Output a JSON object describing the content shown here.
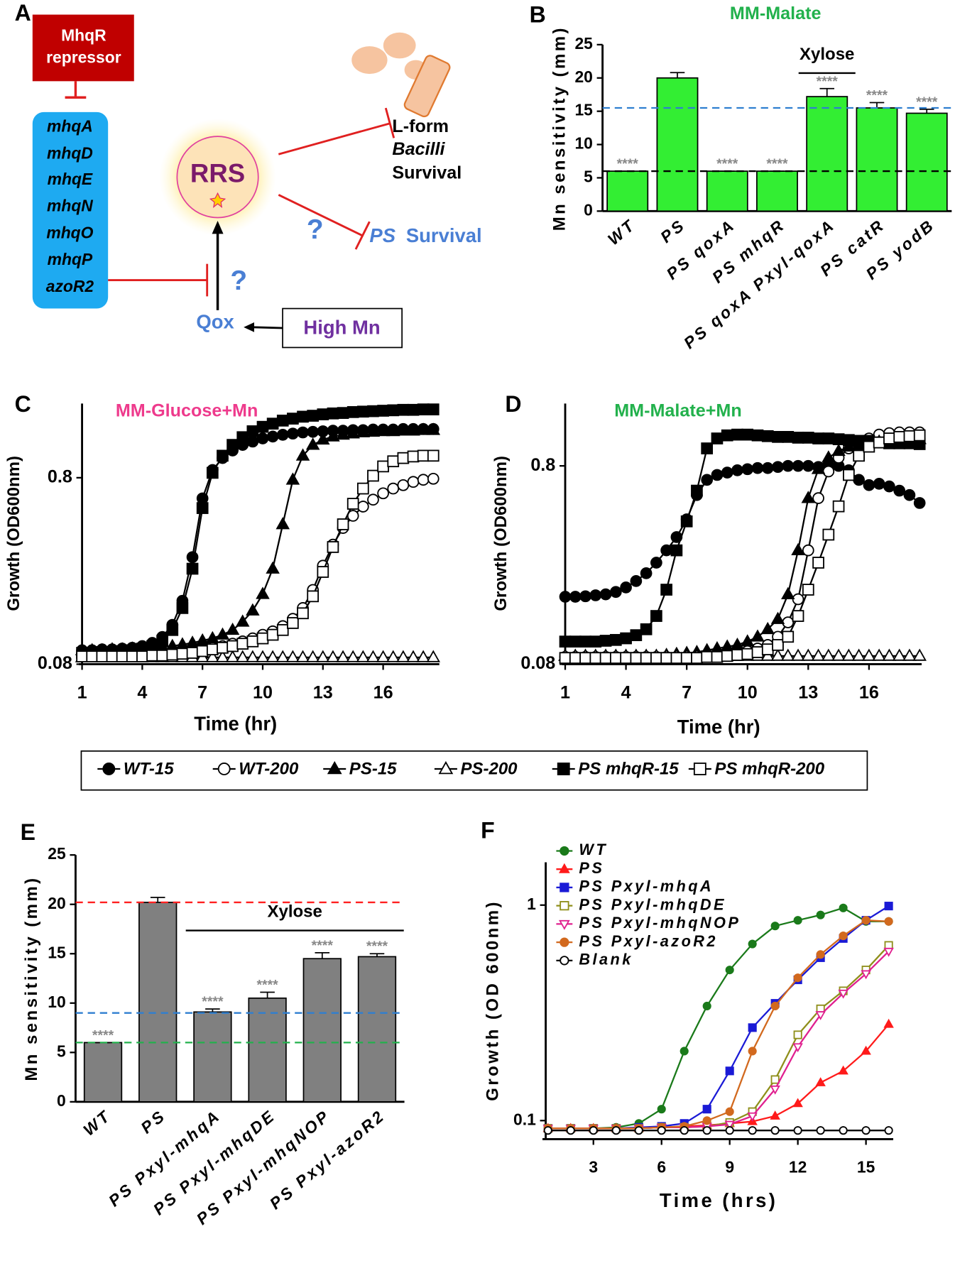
{
  "diagram": {
    "panel": "A",
    "repressor": [
      "MhqR",
      "repressor"
    ],
    "genes": [
      "mhqA",
      "mhqD",
      "mhqE",
      "mhqN",
      "mhqO",
      "mhqP",
      "azoR2"
    ],
    "center": "RRS",
    "lform": [
      "L-form",
      "Bacilli",
      "Survival"
    ],
    "question_marks": [
      "?",
      "?"
    ],
    "ps_survival": [
      "PS",
      "Survival"
    ],
    "qox": "Qox",
    "high_mn": "High Mn"
  },
  "shared_legend": [
    "WT-15",
    "WT-200",
    "PS-15",
    "PS-200",
    "PS mhqR-15",
    "PS mhqR-200"
  ],
  "chart_data": [
    {
      "panel": "B",
      "type": "bar",
      "title": "MM-Malate",
      "title_color": "#22b14c",
      "y_label": "Mn sensitivity (mm)",
      "categories": [
        "WT",
        "PS",
        "PS qoxA",
        "PS mhqR",
        "PS qoxA Pxyl-qoxA",
        "PS catR",
        "PS yodB"
      ],
      "values": [
        6,
        20,
        6,
        6,
        17.2,
        15.5,
        14.7
      ],
      "errors": [
        0,
        0.8,
        0,
        0,
        1.2,
        0.8,
        0.6
      ],
      "significance": [
        "****",
        null,
        "****",
        "****",
        "****",
        "****",
        "****"
      ],
      "color": "#33ee33",
      "ylim": [
        0,
        25
      ],
      "yticks": [
        0,
        5,
        10,
        15,
        20,
        25
      ],
      "reference_lines": [
        {
          "value": 15.5,
          "color": "#2f7fd0"
        },
        {
          "value": 6,
          "color": "#000000"
        }
      ],
      "bracket": {
        "label": "Xylose",
        "span": [
          4,
          4
        ]
      }
    },
    {
      "panel": "C",
      "type": "line",
      "title": "MM-Glucose+Mn",
      "title_color": "#ee3a8c",
      "y_label": "Growth (OD600nm)",
      "x_label": "Time (hr)",
      "log_y": true,
      "xlim": [
        1,
        18.8
      ],
      "xticks": [
        1,
        4,
        7,
        10,
        13,
        16
      ],
      "ylim": [
        0.08,
        2.0
      ],
      "yticks": [
        0.08,
        0.8
      ],
      "x": [
        1,
        1.5,
        2,
        2.5,
        3,
        3.5,
        4,
        4.5,
        5,
        5.5,
        6,
        6.5,
        7,
        7.5,
        8,
        8.5,
        9,
        9.5,
        10,
        10.5,
        11,
        11.5,
        12,
        12.5,
        13,
        13.5,
        14,
        14.5,
        15,
        15.5,
        16,
        16.5,
        17,
        17.5,
        18,
        18.5
      ],
      "series": [
        {
          "marker": "circle",
          "filled": true,
          "color": "#000000",
          "values": [
            0.095,
            0.095,
            0.096,
            0.096,
            0.097,
            0.098,
            0.1,
            0.104,
            0.112,
            0.13,
            0.175,
            0.3,
            0.62,
            0.88,
            1.02,
            1.12,
            1.2,
            1.25,
            1.3,
            1.33,
            1.36,
            1.38,
            1.4,
            1.41,
            1.42,
            1.43,
            1.43,
            1.44,
            1.44,
            1.45,
            1.45,
            1.45,
            1.46,
            1.46,
            1.46,
            1.46
          ]
        },
        {
          "marker": "circle",
          "filled": false,
          "color": "#000000",
          "values": [
            0.09,
            0.09,
            0.09,
            0.09,
            0.09,
            0.09,
            0.09,
            0.091,
            0.091,
            0.092,
            0.093,
            0.094,
            0.096,
            0.098,
            0.1,
            0.103,
            0.106,
            0.11,
            0.115,
            0.12,
            0.128,
            0.14,
            0.16,
            0.2,
            0.27,
            0.35,
            0.43,
            0.5,
            0.56,
            0.61,
            0.66,
            0.7,
            0.73,
            0.76,
            0.78,
            0.79
          ]
        },
        {
          "marker": "triangle",
          "filled": true,
          "color": "#000000",
          "values": [
            0.095,
            0.095,
            0.095,
            0.096,
            0.096,
            0.097,
            0.097,
            0.098,
            0.099,
            0.1,
            0.102,
            0.104,
            0.107,
            0.11,
            0.115,
            0.122,
            0.135,
            0.155,
            0.19,
            0.26,
            0.45,
            0.78,
            1.05,
            1.2,
            1.28,
            1.33,
            1.36,
            1.38,
            1.4,
            1.41,
            1.42,
            1.42,
            1.43,
            1.43,
            1.44,
            1.44
          ]
        },
        {
          "marker": "triangle",
          "filled": false,
          "color": "#000000",
          "values": [
            0.087,
            0.087,
            0.087,
            0.087,
            0.087,
            0.087,
            0.087,
            0.087,
            0.087,
            0.087,
            0.087,
            0.087,
            0.087,
            0.087,
            0.087,
            0.087,
            0.087,
            0.087,
            0.087,
            0.087,
            0.087,
            0.087,
            0.087,
            0.087,
            0.087,
            0.087,
            0.087,
            0.087,
            0.087,
            0.087,
            0.087,
            0.087,
            0.087,
            0.087,
            0.087,
            0.087
          ]
        },
        {
          "marker": "square",
          "filled": true,
          "color": "#000000",
          "values": [
            0.092,
            0.092,
            0.093,
            0.093,
            0.094,
            0.095,
            0.097,
            0.1,
            0.107,
            0.122,
            0.16,
            0.26,
            0.55,
            0.85,
            1.05,
            1.2,
            1.32,
            1.42,
            1.5,
            1.56,
            1.62,
            1.66,
            1.7,
            1.72,
            1.75,
            1.77,
            1.78,
            1.8,
            1.81,
            1.82,
            1.83,
            1.84,
            1.85,
            1.85,
            1.86,
            1.86
          ]
        },
        {
          "marker": "square",
          "filled": false,
          "color": "#000000",
          "values": [
            0.088,
            0.088,
            0.088,
            0.088,
            0.088,
            0.088,
            0.088,
            0.089,
            0.089,
            0.09,
            0.091,
            0.092,
            0.094,
            0.096,
            0.098,
            0.1,
            0.103,
            0.106,
            0.11,
            0.115,
            0.122,
            0.133,
            0.15,
            0.185,
            0.25,
            0.34,
            0.45,
            0.58,
            0.7,
            0.82,
            0.92,
            0.98,
            1.02,
            1.04,
            1.05,
            1.05
          ]
        }
      ]
    },
    {
      "panel": "D",
      "type": "line",
      "title": "MM-Malate+Mn",
      "title_color": "#22b14c",
      "y_label": "Growth (OD600nm)",
      "x_label": "Time (hr)",
      "log_y": true,
      "xlim": [
        1,
        18.6
      ],
      "xticks": [
        1,
        4,
        7,
        10,
        13,
        16
      ],
      "ylim": [
        0.08,
        1.65
      ],
      "yticks": [
        0.08,
        0.8
      ],
      "x": [
        1,
        1.5,
        2,
        2.5,
        3,
        3.5,
        4,
        4.5,
        5,
        5.5,
        6,
        6.5,
        7,
        7.5,
        8,
        8.5,
        9,
        9.5,
        10,
        10.5,
        11,
        11.5,
        12,
        12.5,
        13,
        13.5,
        14,
        14.5,
        15,
        15.5,
        16,
        16.5,
        17,
        17.5,
        18,
        18.5
      ],
      "series": [
        {
          "marker": "circle",
          "filled": true,
          "color": "#000000",
          "values": [
            0.175,
            0.175,
            0.176,
            0.178,
            0.18,
            0.185,
            0.195,
            0.21,
            0.23,
            0.26,
            0.3,
            0.35,
            0.43,
            0.57,
            0.68,
            0.72,
            0.74,
            0.76,
            0.77,
            0.78,
            0.78,
            0.79,
            0.8,
            0.8,
            0.8,
            0.79,
            0.8,
            0.8,
            0.76,
            0.68,
            0.64,
            0.65,
            0.63,
            0.6,
            0.57,
            0.52
          ]
        },
        {
          "marker": "circle",
          "filled": false,
          "color": "#000000",
          "values": [
            0.087,
            0.087,
            0.087,
            0.087,
            0.087,
            0.087,
            0.087,
            0.087,
            0.087,
            0.087,
            0.087,
            0.087,
            0.087,
            0.088,
            0.088,
            0.089,
            0.09,
            0.091,
            0.093,
            0.096,
            0.1,
            0.11,
            0.13,
            0.17,
            0.3,
            0.55,
            0.75,
            0.88,
            0.98,
            1.05,
            1.1,
            1.15,
            1.17,
            1.18,
            1.18,
            1.18
          ]
        },
        {
          "marker": "triangle",
          "filled": true,
          "color": "#000000",
          "values": [
            0.088,
            0.088,
            0.088,
            0.088,
            0.088,
            0.088,
            0.088,
            0.088,
            0.088,
            0.088,
            0.089,
            0.09,
            0.091,
            0.092,
            0.094,
            0.096,
            0.098,
            0.1,
            0.104,
            0.11,
            0.12,
            0.135,
            0.18,
            0.3,
            0.55,
            0.77,
            0.88,
            0.95,
            1.0,
            1.02,
            1.05,
            1.06,
            1.07,
            1.07,
            1.08,
            1.09
          ]
        },
        {
          "marker": "triangle",
          "filled": false,
          "color": "#000000",
          "values": [
            0.088,
            0.088,
            0.088,
            0.088,
            0.088,
            0.088,
            0.088,
            0.088,
            0.088,
            0.088,
            0.088,
            0.088,
            0.088,
            0.088,
            0.088,
            0.088,
            0.088,
            0.088,
            0.088,
            0.088,
            0.088,
            0.088,
            0.088,
            0.088,
            0.088,
            0.088,
            0.088,
            0.088,
            0.088,
            0.088,
            0.088,
            0.088,
            0.088,
            0.088,
            0.088,
            0.088
          ]
        },
        {
          "marker": "square",
          "filled": true,
          "color": "#000000",
          "values": [
            0.104,
            0.104,
            0.104,
            0.104,
            0.105,
            0.106,
            0.108,
            0.112,
            0.12,
            0.14,
            0.19,
            0.3,
            0.42,
            0.6,
            0.98,
            1.1,
            1.14,
            1.15,
            1.15,
            1.14,
            1.13,
            1.12,
            1.12,
            1.11,
            1.11,
            1.1,
            1.1,
            1.09,
            1.08,
            1.07,
            1.07,
            1.05,
            1.04,
            1.04,
            1.04,
            1.03
          ]
        },
        {
          "marker": "square",
          "filled": false,
          "color": "#000000",
          "values": [
            0.086,
            0.086,
            0.086,
            0.086,
            0.086,
            0.086,
            0.086,
            0.086,
            0.086,
            0.086,
            0.086,
            0.086,
            0.086,
            0.086,
            0.087,
            0.087,
            0.088,
            0.089,
            0.09,
            0.092,
            0.095,
            0.1,
            0.11,
            0.14,
            0.19,
            0.26,
            0.36,
            0.5,
            0.72,
            0.9,
            1.0,
            1.05,
            1.1,
            1.12,
            1.13,
            1.14
          ]
        }
      ]
    },
    {
      "panel": "E",
      "type": "bar",
      "y_label": "Mn sensitivity (mm)",
      "categories": [
        "WT",
        "PS",
        "PS Pxyl-mhqA",
        "PS Pxyl-mhqDE",
        "PS Pxyl-mhqNOP",
        "PS Pxyl-azoR2"
      ],
      "values": [
        6,
        20.2,
        9.1,
        10.5,
        14.5,
        14.7
      ],
      "errors": [
        0,
        0.5,
        0.3,
        0.6,
        0.6,
        0.3
      ],
      "significance": [
        "****",
        null,
        "****",
        "****",
        "****",
        "****"
      ],
      "color": "#808080",
      "ylim": [
        0,
        25
      ],
      "yticks": [
        0,
        5,
        10,
        15,
        20,
        25
      ],
      "reference_lines": [
        {
          "value": 20.2,
          "color": "#ff2020"
        },
        {
          "value": 9,
          "color": "#2f7fd0"
        },
        {
          "value": 6,
          "color": "#22b14c"
        }
      ],
      "bracket": {
        "label": "Xylose",
        "span": [
          2,
          5
        ]
      }
    },
    {
      "panel": "F",
      "type": "line",
      "y_label": "Growth (OD 600nm)",
      "x_label": "Time (hrs)",
      "log_y": true,
      "xlim": [
        0.9,
        16.2
      ],
      "xticks": [
        3,
        6,
        9,
        12,
        15
      ],
      "ylim": [
        0.082,
        1.58
      ],
      "yticks": [
        0.1,
        1
      ],
      "x": [
        1,
        2,
        3,
        4,
        5,
        6,
        7,
        8,
        9,
        10,
        11,
        12,
        13,
        14,
        15,
        16
      ],
      "series": [
        {
          "name": "WT",
          "marker": "circle",
          "filled": true,
          "color": "#1a7a1a",
          "values": [
            0.092,
            0.092,
            0.092,
            0.093,
            0.097,
            0.113,
            0.21,
            0.34,
            0.5,
            0.66,
            0.8,
            0.85,
            0.9,
            0.97,
            0.84,
            0.84
          ]
        },
        {
          "name": "PS",
          "marker": "triangle",
          "filled": true,
          "color": "#ff1a1a",
          "values": [
            0.092,
            0.092,
            0.092,
            0.092,
            0.092,
            0.093,
            0.094,
            0.095,
            0.097,
            0.099,
            0.105,
            0.12,
            0.15,
            0.17,
            0.21,
            0.28
          ]
        },
        {
          "name": "PS Pxyl-mhqA",
          "marker": "square",
          "filled": true,
          "color": "#1a1ad6",
          "values": [
            0.092,
            0.092,
            0.092,
            0.092,
            0.093,
            0.094,
            0.097,
            0.113,
            0.17,
            0.27,
            0.35,
            0.45,
            0.57,
            0.7,
            0.85,
            0.99
          ]
        },
        {
          "name": "PS Pxyl-mhqDE",
          "marker": "square",
          "filled": false,
          "color": "#8f8f1a",
          "values": [
            0.092,
            0.092,
            0.092,
            0.092,
            0.092,
            0.093,
            0.093,
            0.094,
            0.098,
            0.11,
            0.155,
            0.25,
            0.33,
            0.4,
            0.5,
            0.65
          ]
        },
        {
          "name": "PS Pxyl-mhqNOP",
          "marker": "triangle-down",
          "filled": false,
          "color": "#e0208f",
          "values": [
            0.092,
            0.092,
            0.092,
            0.092,
            0.092,
            0.093,
            0.093,
            0.094,
            0.096,
            0.105,
            0.14,
            0.22,
            0.31,
            0.39,
            0.48,
            0.61
          ]
        },
        {
          "name": "PS Pxyl-azoR2",
          "marker": "circle",
          "filled": true,
          "color": "#d2691e",
          "values": [
            0.092,
            0.092,
            0.092,
            0.092,
            0.092,
            0.093,
            0.094,
            0.1,
            0.11,
            0.21,
            0.34,
            0.46,
            0.59,
            0.72,
            0.85,
            0.84
          ]
        },
        {
          "name": "Blank",
          "marker": "circle",
          "filled": false,
          "color": "#000000",
          "values": [
            0.09,
            0.09,
            0.09,
            0.09,
            0.09,
            0.09,
            0.09,
            0.09,
            0.09,
            0.09,
            0.09,
            0.09,
            0.09,
            0.09,
            0.09,
            0.09
          ]
        }
      ]
    }
  ]
}
